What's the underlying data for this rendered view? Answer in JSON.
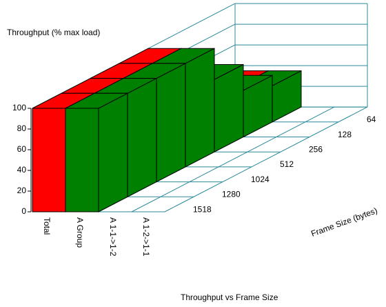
{
  "chart_data": {
    "type": "bar3d",
    "title": "Throughput vs Frame Size",
    "y_label": "Throughput (% max load)",
    "depth_label": "Frame Size (bytes)",
    "categories": [
      "1518",
      "1280",
      "1024",
      "512",
      "256",
      "128",
      "64"
    ],
    "series": [
      {
        "name": "Total",
        "color": "#ff0000",
        "values": [
          100,
          100,
          100,
          100,
          70,
          48,
          35
        ]
      },
      {
        "name": "A Group",
        "color": "#008000",
        "values": [
          100,
          100,
          100,
          100,
          70,
          45,
          35
        ]
      },
      {
        "name": "A 1-1->1-2",
        "color": "#008000",
        "values": [
          0,
          0,
          0,
          0,
          0,
          0,
          0
        ]
      },
      {
        "name": "A 1-2->1-1",
        "color": "#008000",
        "values": [
          0,
          0,
          0,
          0,
          0,
          0,
          0
        ]
      }
    ],
    "ylim": [
      0,
      100
    ],
    "yticks": [
      0,
      20,
      40,
      60,
      80,
      100
    ],
    "grid": true
  }
}
